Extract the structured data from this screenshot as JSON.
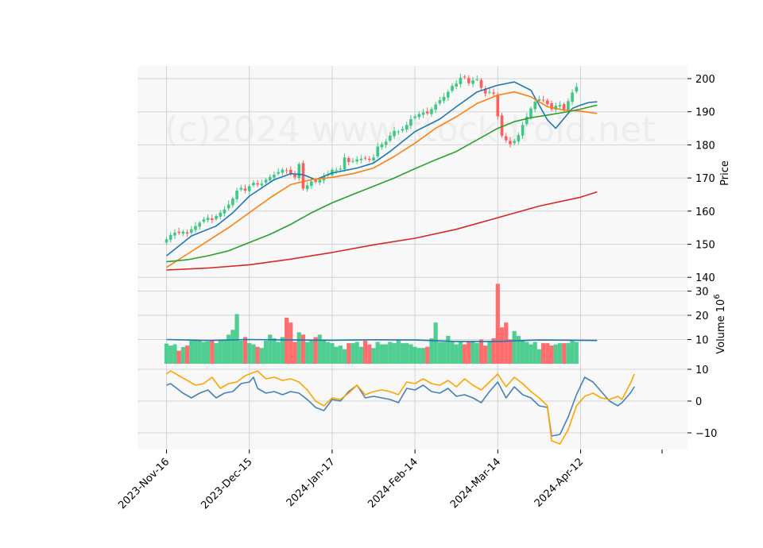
{
  "watermark": "(c)2024 www.stockdroid.net",
  "colors": {
    "up": "#3dc985",
    "down": "#ff5e5e",
    "ma_short": "#1f77b4",
    "ma_mid": "#ff7f0e",
    "ma_long": "#2ca02c",
    "ma_xlong": "#d62728",
    "vol_ma": "#1f77b4",
    "osc_fast": "#4682b4",
    "osc_slow": "#ffa500",
    "panel_bg": "#f8f8f8",
    "grid": "#d3d3d3"
  },
  "chart_data": [
    {
      "type": "candlestick",
      "ylabel": "Price",
      "ylim": [
        140,
        202
      ],
      "yticks": [
        140,
        150,
        160,
        170,
        180,
        190,
        200
      ],
      "grid": true,
      "xticks": [
        {
          "index": 0,
          "label": "2023-Nov-16"
        },
        {
          "index": 20,
          "label": "2023-Dec-15"
        },
        {
          "index": 40,
          "label": "2024-Jan-17"
        },
        {
          "index": 60,
          "label": "2024-Feb-14"
        },
        {
          "index": 80,
          "label": "2024-Mar-14"
        },
        {
          "index": 100,
          "label": "2024-Apr-12"
        }
      ],
      "close": [
        151.5,
        152.8,
        153.5,
        153.4,
        153.8,
        153.2,
        154.5,
        155.5,
        156.5,
        157.5,
        158.0,
        157.3,
        158.5,
        159.5,
        160.5,
        162.0,
        163.8,
        166.2,
        167.0,
        166.2,
        167.5,
        168.6,
        168.0,
        168.3,
        169.5,
        170.3,
        171.0,
        171.8,
        172.5,
        172.2,
        171.2,
        170.2,
        174.2,
        166.8,
        167.8,
        169.0,
        168.8,
        169.5,
        170.5,
        171.0,
        172.5,
        172.4,
        172.8,
        176.2,
        174.8,
        175.2,
        175.6,
        175.8,
        176.0,
        175.5,
        176.2,
        179.5,
        180.2,
        181.0,
        182.8,
        184.2,
        184.0,
        184.8,
        186.0,
        187.8,
        188.6,
        189.3,
        189.8,
        189.5,
        190.8,
        192.2,
        193.5,
        194.5,
        196.0,
        197.8,
        198.5,
        200.3,
        200.4,
        198.6,
        199.5,
        199.8,
        197.2,
        195.5,
        196.0,
        195.4,
        188.6,
        182.8,
        181.4,
        180.2,
        181.2,
        183.0,
        186.0,
        188.5,
        191.0,
        193.0,
        193.8,
        193.6,
        192.3,
        190.8,
        191.8,
        192.0,
        190.6,
        193.2,
        195.8,
        197.5
      ],
      "volume": [
        8.3,
        7.5,
        8.0,
        5.4,
        6.9,
        7.5,
        9.8,
        9.6,
        9.5,
        9.0,
        9.2,
        9.5,
        8.5,
        9.8,
        10.0,
        12.0,
        14.0,
        20.5,
        9.5,
        11.0,
        8.5,
        8.0,
        7.0,
        6.5,
        9.5,
        12.0,
        10.5,
        9.0,
        11.0,
        19.0,
        17.0,
        9.0,
        13.0,
        12.0,
        9.0,
        10.0,
        11.0,
        12.0,
        10.0,
        9.0,
        8.5,
        7.0,
        7.5,
        6.0,
        8.5,
        8.5,
        9.0,
        7.0,
        9.5,
        8.0,
        6.5,
        9.0,
        8.0,
        8.0,
        9.0,
        8.5,
        10.0,
        8.5,
        8.5,
        8.0,
        7.0,
        6.5,
        6.5,
        7.0,
        10.5,
        17.0,
        9.0,
        9.0,
        11.5,
        9.0,
        8.0,
        9.0,
        8.0,
        9.0,
        9.0,
        8.5,
        10.0,
        7.5,
        9.5,
        10.5,
        33.0,
        15.0,
        17.0,
        10.0,
        13.5,
        11.5,
        9.5,
        9.0,
        8.0,
        9.0,
        6.0,
        8.5,
        8.5,
        7.5,
        8.0,
        8.5,
        8.5,
        8.5,
        9.5,
        9.0
      ],
      "series": [
        {
          "key": "ma_short",
          "points": [
            [
              0,
              146.5
            ],
            [
              6,
              152.5
            ],
            [
              12,
              155.5
            ],
            [
              16,
              159.5
            ],
            [
              20,
              164.5
            ],
            [
              26,
              169.5
            ],
            [
              30,
              171.3
            ],
            [
              33,
              171.0
            ],
            [
              36,
              169.5
            ],
            [
              40,
              171.5
            ],
            [
              46,
              173.0
            ],
            [
              50,
              174.5
            ],
            [
              54,
              178.0
            ],
            [
              60,
              184.0
            ],
            [
              66,
              187.8
            ],
            [
              70,
              191.5
            ],
            [
              75,
              196.0
            ],
            [
              80,
              198.0
            ],
            [
              84,
              199.0
            ],
            [
              88,
              196.5
            ],
            [
              90,
              192.0
            ],
            [
              92,
              187.5
            ],
            [
              94,
              185.0
            ],
            [
              96,
              188.0
            ],
            [
              98,
              191.0
            ],
            [
              100,
              192.0
            ],
            [
              102,
              192.8
            ],
            [
              104,
              193.0
            ]
          ]
        },
        {
          "key": "ma_mid",
          "points": [
            [
              0,
              143.0
            ],
            [
              5,
              147.0
            ],
            [
              10,
              151.0
            ],
            [
              15,
              155.0
            ],
            [
              20,
              159.5
            ],
            [
              25,
              164.0
            ],
            [
              30,
              168.0
            ],
            [
              35,
              169.5
            ],
            [
              40,
              170.2
            ],
            [
              45,
              171.3
            ],
            [
              50,
              173.0
            ],
            [
              55,
              176.5
            ],
            [
              60,
              180.5
            ],
            [
              65,
              185.0
            ],
            [
              70,
              188.5
            ],
            [
              75,
              192.5
            ],
            [
              80,
              195.0
            ],
            [
              84,
              196.0
            ],
            [
              88,
              194.5
            ],
            [
              92,
              191.5
            ],
            [
              96,
              190.5
            ],
            [
              100,
              190.2
            ],
            [
              104,
              189.5
            ]
          ]
        },
        {
          "key": "ma_long",
          "points": [
            [
              0,
              144.7
            ],
            [
              5,
              145.3
            ],
            [
              10,
              146.5
            ],
            [
              15,
              148.0
            ],
            [
              20,
              150.5
            ],
            [
              25,
              153.0
            ],
            [
              30,
              156.0
            ],
            [
              35,
              159.5
            ],
            [
              40,
              162.5
            ],
            [
              45,
              165.0
            ],
            [
              50,
              167.5
            ],
            [
              55,
              170.0
            ],
            [
              60,
              172.8
            ],
            [
              65,
              175.5
            ],
            [
              70,
              178.0
            ],
            [
              75,
              181.5
            ],
            [
              80,
              185.0
            ],
            [
              84,
              187.0
            ],
            [
              88,
              188.2
            ],
            [
              92,
              189.0
            ],
            [
              96,
              189.8
            ],
            [
              100,
              190.8
            ],
            [
              104,
              192.0
            ]
          ]
        },
        {
          "key": "ma_xlong",
          "points": [
            [
              0,
              142.2
            ],
            [
              10,
              142.8
            ],
            [
              20,
              143.8
            ],
            [
              30,
              145.5
            ],
            [
              40,
              147.5
            ],
            [
              50,
              149.8
            ],
            [
              60,
              151.8
            ],
            [
              70,
              154.5
            ],
            [
              80,
              158.0
            ],
            [
              90,
              161.5
            ],
            [
              100,
              164.2
            ],
            [
              104,
              165.8
            ]
          ]
        }
      ]
    },
    {
      "type": "bar",
      "ylabel": "Volume",
      "unit_exponent": "6",
      "ylim": [
        0,
        33
      ],
      "yticks": [
        10,
        20,
        30
      ],
      "vol_ma": [
        [
          0,
          10.0
        ],
        [
          10,
          9.6
        ],
        [
          20,
          10.0
        ],
        [
          30,
          9.8
        ],
        [
          40,
          9.7
        ],
        [
          50,
          9.9
        ],
        [
          60,
          9.8
        ],
        [
          70,
          9.2
        ],
        [
          80,
          9.2
        ],
        [
          90,
          9.8
        ],
        [
          104,
          9.6
        ]
      ]
    },
    {
      "type": "line",
      "ylim": [
        -15,
        10
      ],
      "yticks": [
        -10,
        0,
        10
      ],
      "series": [
        {
          "key": "osc_fast",
          "points": [
            [
              0,
              5.0
            ],
            [
              1,
              5.5
            ],
            [
              2,
              4.5
            ],
            [
              4,
              2.5
            ],
            [
              6,
              1.0
            ],
            [
              8,
              2.5
            ],
            [
              10,
              3.5
            ],
            [
              12,
              1.0
            ],
            [
              14,
              2.5
            ],
            [
              16,
              3.0
            ],
            [
              18,
              5.5
            ],
            [
              20,
              6.0
            ],
            [
              21,
              7.5
            ],
            [
              22,
              4.0
            ],
            [
              24,
              2.5
            ],
            [
              26,
              3.0
            ],
            [
              28,
              2.0
            ],
            [
              30,
              3.0
            ],
            [
              32,
              2.5
            ],
            [
              34,
              0.5
            ],
            [
              36,
              -2.0
            ],
            [
              38,
              -3.0
            ],
            [
              40,
              0.5
            ],
            [
              42,
              0.0
            ],
            [
              44,
              3.0
            ],
            [
              46,
              5.0
            ],
            [
              48,
              1.0
            ],
            [
              50,
              1.5
            ],
            [
              52,
              1.0
            ],
            [
              54,
              0.5
            ],
            [
              56,
              -0.5
            ],
            [
              58,
              4.0
            ],
            [
              60,
              3.5
            ],
            [
              62,
              5.0
            ],
            [
              64,
              3.0
            ],
            [
              66,
              2.5
            ],
            [
              68,
              4.0
            ],
            [
              70,
              1.5
            ],
            [
              72,
              2.0
            ],
            [
              74,
              1.0
            ],
            [
              76,
              -0.5
            ],
            [
              78,
              3.0
            ],
            [
              80,
              6.0
            ],
            [
              82,
              1.0
            ],
            [
              84,
              4.5
            ],
            [
              86,
              2.0
            ],
            [
              88,
              1.0
            ],
            [
              90,
              -1.5
            ],
            [
              92,
              -2.0
            ],
            [
              93,
              -11.0
            ],
            [
              95,
              -10.5
            ],
            [
              97,
              -5.0
            ],
            [
              99,
              2.0
            ],
            [
              101,
              7.5
            ],
            [
              103,
              6.0
            ],
            [
              105,
              3.0
            ],
            [
              107,
              0.0
            ],
            [
              109,
              -1.5
            ],
            [
              110,
              -0.5
            ],
            [
              112,
              2.5
            ],
            [
              113,
              4.5
            ]
          ]
        },
        {
          "key": "osc_slow",
          "points": [
            [
              0,
              8.5
            ],
            [
              1,
              9.5
            ],
            [
              3,
              8.0
            ],
            [
              5,
              6.5
            ],
            [
              7,
              5.0
            ],
            [
              9,
              5.5
            ],
            [
              11,
              7.5
            ],
            [
              13,
              4.0
            ],
            [
              15,
              5.5
            ],
            [
              17,
              6.0
            ],
            [
              19,
              8.0
            ],
            [
              20,
              8.5
            ],
            [
              22,
              9.5
            ],
            [
              24,
              7.0
            ],
            [
              26,
              7.5
            ],
            [
              28,
              6.5
            ],
            [
              30,
              7.0
            ],
            [
              32,
              6.0
            ],
            [
              34,
              3.5
            ],
            [
              36,
              0.0
            ],
            [
              38,
              -1.5
            ],
            [
              40,
              1.0
            ],
            [
              42,
              0.5
            ],
            [
              44,
              2.5
            ],
            [
              46,
              5.0
            ],
            [
              48,
              2.0
            ],
            [
              50,
              3.0
            ],
            [
              52,
              3.5
            ],
            [
              54,
              3.0
            ],
            [
              56,
              2.0
            ],
            [
              58,
              6.0
            ],
            [
              60,
              5.5
            ],
            [
              62,
              7.0
            ],
            [
              64,
              5.5
            ],
            [
              66,
              5.0
            ],
            [
              68,
              6.5
            ],
            [
              70,
              4.5
            ],
            [
              72,
              7.0
            ],
            [
              74,
              5.0
            ],
            [
              76,
              3.5
            ],
            [
              78,
              6.0
            ],
            [
              80,
              8.5
            ],
            [
              82,
              4.5
            ],
            [
              84,
              7.5
            ],
            [
              86,
              5.5
            ],
            [
              88,
              3.0
            ],
            [
              90,
              1.0
            ],
            [
              92,
              -1.5
            ],
            [
              93,
              -12.5
            ],
            [
              95,
              -13.5
            ],
            [
              97,
              -9.0
            ],
            [
              99,
              -1.5
            ],
            [
              101,
              1.5
            ],
            [
              103,
              2.5
            ],
            [
              105,
              1.0
            ],
            [
              107,
              0.5
            ],
            [
              109,
              1.5
            ],
            [
              110,
              0.5
            ],
            [
              112,
              5.5
            ],
            [
              113,
              8.5
            ]
          ]
        }
      ]
    }
  ]
}
